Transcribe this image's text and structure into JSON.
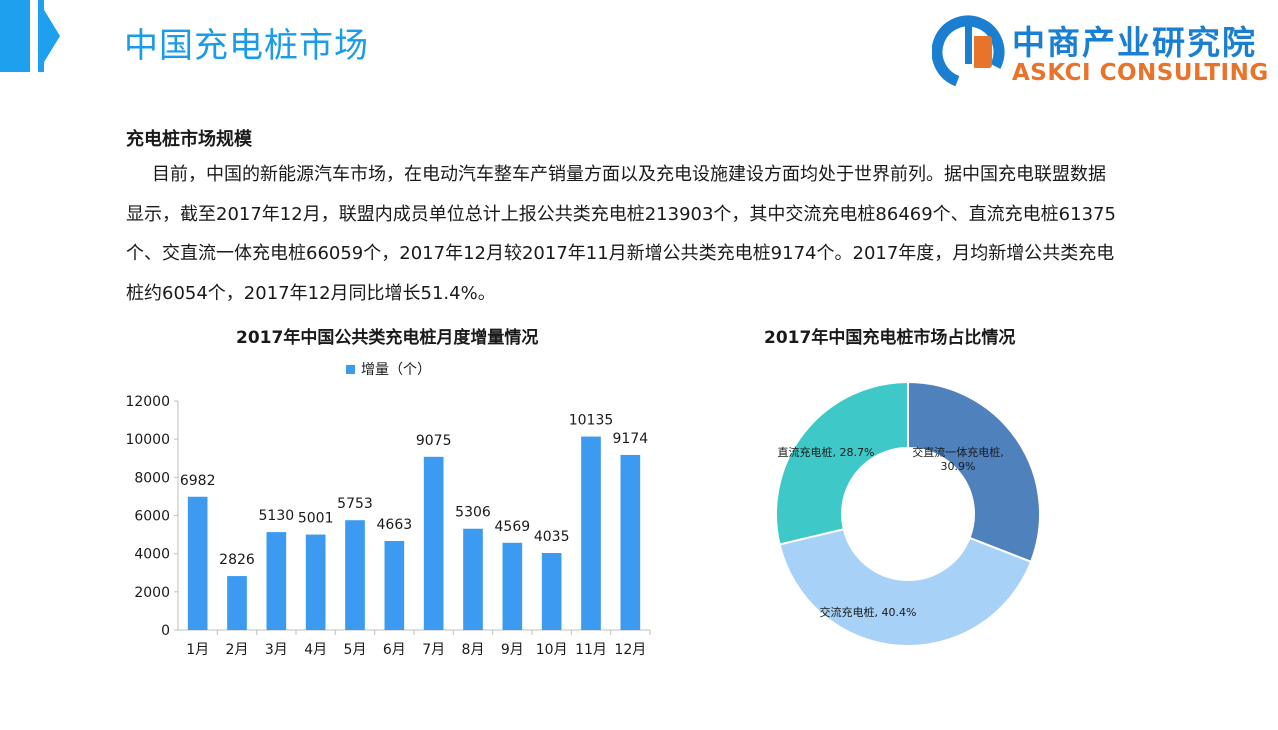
{
  "header": {
    "title": "中国充电桩市场",
    "logo_cn": "中商产业研究院",
    "logo_en": "ASKCI CONSULTING"
  },
  "section": {
    "title": "充电桩市场规模",
    "paragraph": "目前，中国的新能源汽车市场，在电动汽车整车产销量方面以及充电设施建设方面均处于世界前列。据中国充电联盟数据显示，截至2017年12月，联盟内成员单位总计上报公共类充电桩213903个，其中交流充电桩86469个、直流充电桩61375个、交直流一体充电桩66059个，2017年12月较2017年11月新增公共类充电桩9174个。2017年度，月均新增公共类充电桩约6054个，2017年12月同比增长51.4%。"
  },
  "colors": {
    "accent": "#1fa0ee",
    "bar": "#3c9bf0",
    "pie_ac_dc": "#4f81bd",
    "pie_ac": "#a8d1f7",
    "pie_dc": "#3ec8c8"
  },
  "chart_data": [
    {
      "type": "bar",
      "title": "2017年中国公共类充电桩月度增量情况",
      "categories": [
        "1月",
        "2月",
        "3月",
        "4月",
        "5月",
        "6月",
        "7月",
        "8月",
        "9月",
        "10月",
        "11月",
        "12月"
      ],
      "series": [
        {
          "name": "增量（个）",
          "values": [
            6982,
            2826,
            5130,
            5001,
            5753,
            4663,
            9075,
            5306,
            4569,
            4035,
            10135,
            9174
          ]
        }
      ],
      "ylim": [
        0,
        12000
      ],
      "yticks": [
        0,
        2000,
        4000,
        6000,
        8000,
        10000,
        12000
      ],
      "legend": "top"
    },
    {
      "type": "pie",
      "title": "2017年中国充电桩市场占比情况",
      "slices": [
        {
          "label": "交直流一体充电桩",
          "percent": 30.9,
          "display": "交直流一体充电桩, 30.9%"
        },
        {
          "label": "交流充电桩",
          "percent": 40.4,
          "display": "交流充电桩, 40.4%"
        },
        {
          "label": "直流充电桩",
          "percent": 28.7,
          "display": "直流充电桩, 28.7%"
        }
      ]
    }
  ]
}
